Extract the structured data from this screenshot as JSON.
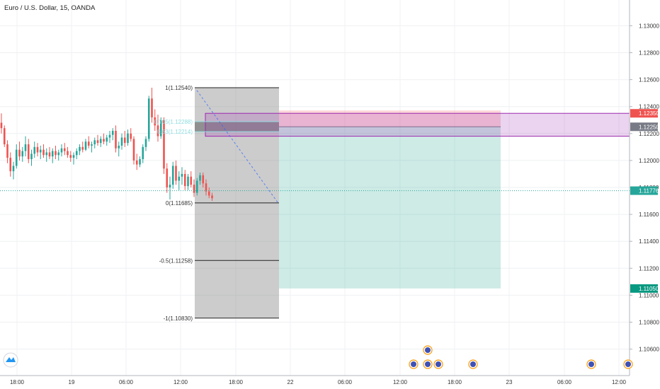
{
  "title": "Euro / U.S. Dollar, 15, OANDA",
  "chart_data": {
    "type": "candlestick",
    "instrument": "Euro / U.S. Dollar",
    "interval": "15",
    "source": "OANDA",
    "ylim": [
      1.1043,
      1.1317
    ],
    "y_ticks": [
      "1.13000",
      "1.12800",
      "1.12600",
      "1.12400",
      "1.12200",
      "1.12000",
      "1.11800",
      "1.11600",
      "1.11400",
      "1.11200",
      "1.11000",
      "1.10800",
      "1.10600"
    ],
    "x_ticks": [
      "18:00",
      "19",
      "06:00",
      "12:00",
      "18:00",
      "22",
      "06:00",
      "12:00",
      "18:00",
      "23",
      "06:00",
      "12:00"
    ],
    "price_labels": [
      {
        "value": "1.12350",
        "color": "#ef5350"
      },
      {
        "value": "1.12250",
        "color": "#787b86"
      },
      {
        "value": "1.11776",
        "color": "#26a69a"
      },
      {
        "value": "1.11050",
        "color": "#089981"
      }
    ],
    "fib_levels": [
      {
        "label": "1(1.12540)",
        "value": 1.1254
      },
      {
        "label": "0.705(1.12288)",
        "value": 1.12288
      },
      {
        "label": "0.63(1.12214)",
        "value": 1.12214
      },
      {
        "label": "0(1.11685)",
        "value": 1.11685
      },
      {
        "label": "-0.5(1.11258)",
        "value": 1.11258
      },
      {
        "label": "-1(1.10830)",
        "value": 1.1083
      }
    ],
    "position": {
      "entry": 1.1225,
      "stop": 1.1235,
      "target": 1.1105
    },
    "zone": {
      "top": 1.1235,
      "bottom": 1.1218
    },
    "current_price": 1.11776,
    "candles": [
      [
        1.1228,
        1.1235,
        1.122,
        1.1224
      ],
      [
        1.1224,
        1.1226,
        1.121,
        1.1212
      ],
      [
        1.1212,
        1.1215,
        1.1198,
        1.1202
      ],
      [
        1.1202,
        1.1206,
        1.1188,
        1.1192
      ],
      [
        1.1192,
        1.1199,
        1.1186,
        1.1196
      ],
      [
        1.1196,
        1.1212,
        1.1194,
        1.1208
      ],
      [
        1.1208,
        1.1214,
        1.12,
        1.1203
      ],
      [
        1.1203,
        1.121,
        1.1199,
        1.1207
      ],
      [
        1.1207,
        1.1218,
        1.1203,
        1.1212
      ],
      [
        1.1212,
        1.1216,
        1.1198,
        1.1201
      ],
      [
        1.1201,
        1.1208,
        1.1196,
        1.1205
      ],
      [
        1.1205,
        1.1214,
        1.1202,
        1.121
      ],
      [
        1.121,
        1.1213,
        1.1203,
        1.1206
      ],
      [
        1.1206,
        1.1211,
        1.1201,
        1.1208
      ],
      [
        1.1208,
        1.1212,
        1.1202,
        1.1204
      ],
      [
        1.1204,
        1.1209,
        1.1199,
        1.1206
      ],
      [
        1.1206,
        1.121,
        1.1201,
        1.1203
      ],
      [
        1.1203,
        1.1209,
        1.1198,
        1.1207
      ],
      [
        1.1207,
        1.1211,
        1.1201,
        1.1204
      ],
      [
        1.1204,
        1.1208,
        1.12,
        1.1206
      ],
      [
        1.1206,
        1.1212,
        1.1203,
        1.1209
      ],
      [
        1.1209,
        1.1213,
        1.1204,
        1.1207
      ],
      [
        1.1207,
        1.121,
        1.1202,
        1.1204
      ],
      [
        1.1204,
        1.1207,
        1.1199,
        1.1202
      ],
      [
        1.1202,
        1.1206,
        1.1197,
        1.1204
      ],
      [
        1.1204,
        1.1209,
        1.1201,
        1.1207
      ],
      [
        1.1207,
        1.1212,
        1.1204,
        1.121
      ],
      [
        1.121,
        1.1214,
        1.1206,
        1.1208
      ],
      [
        1.1208,
        1.1216,
        1.1207,
        1.1214
      ],
      [
        1.1214,
        1.1218,
        1.1209,
        1.1211
      ],
      [
        1.1211,
        1.1214,
        1.1206,
        1.1212
      ],
      [
        1.1212,
        1.1217,
        1.1209,
        1.1215
      ],
      [
        1.1215,
        1.1219,
        1.1211,
        1.1213
      ],
      [
        1.1213,
        1.1218,
        1.121,
        1.1216
      ],
      [
        1.1216,
        1.122,
        1.1212,
        1.1214
      ],
      [
        1.1214,
        1.1219,
        1.1211,
        1.1217
      ],
      [
        1.1217,
        1.1222,
        1.1213,
        1.1219
      ],
      [
        1.1219,
        1.1224,
        1.1215,
        1.1222
      ],
      [
        1.1222,
        1.1226,
        1.1206,
        1.1209
      ],
      [
        1.1209,
        1.1214,
        1.1203,
        1.1211
      ],
      [
        1.1211,
        1.122,
        1.1208,
        1.1217
      ],
      [
        1.1217,
        1.1222,
        1.121,
        1.1213
      ],
      [
        1.1213,
        1.1223,
        1.1211,
        1.122
      ],
      [
        1.122,
        1.1224,
        1.1214,
        1.1216
      ],
      [
        1.1216,
        1.1218,
        1.1197,
        1.12
      ],
      [
        1.12,
        1.1205,
        1.1193,
        1.1197
      ],
      [
        1.1197,
        1.1203,
        1.1195,
        1.1201
      ],
      [
        1.1201,
        1.1212,
        1.1198,
        1.121
      ],
      [
        1.121,
        1.1218,
        1.1207,
        1.1216
      ],
      [
        1.1216,
        1.1248,
        1.1214,
        1.1246
      ],
      [
        1.1246,
        1.1254,
        1.1228,
        1.1232
      ],
      [
        1.1232,
        1.1238,
        1.1222,
        1.1226
      ],
      [
        1.1226,
        1.1234,
        1.1214,
        1.1218
      ],
      [
        1.1218,
        1.1232,
        1.1216,
        1.123
      ],
      [
        1.123,
        1.1232,
        1.119,
        1.1194
      ],
      [
        1.1194,
        1.1198,
        1.1176,
        1.118
      ],
      [
        1.118,
        1.1188,
        1.1171,
        1.1182
      ],
      [
        1.1182,
        1.1199,
        1.1179,
        1.1196
      ],
      [
        1.1196,
        1.12,
        1.1182,
        1.1185
      ],
      [
        1.1185,
        1.1192,
        1.1178,
        1.1188
      ],
      [
        1.1188,
        1.1195,
        1.1182,
        1.119
      ],
      [
        1.119,
        1.1193,
        1.1178,
        1.1181
      ],
      [
        1.1181,
        1.119,
        1.1178,
        1.1188
      ],
      [
        1.1188,
        1.1192,
        1.118,
        1.1182
      ],
      [
        1.1182,
        1.1186,
        1.1173,
        1.1176
      ],
      [
        1.1176,
        1.1187,
        1.1174,
        1.1185
      ],
      [
        1.1185,
        1.1191,
        1.1182,
        1.1189
      ],
      [
        1.1189,
        1.1191,
        1.118,
        1.1183
      ],
      [
        1.1183,
        1.1186,
        1.1174,
        1.1177
      ],
      [
        1.1177,
        1.118,
        1.1172,
        1.1174
      ],
      [
        1.1174,
        1.1176,
        1.117,
        1.1172
      ]
    ]
  }
}
